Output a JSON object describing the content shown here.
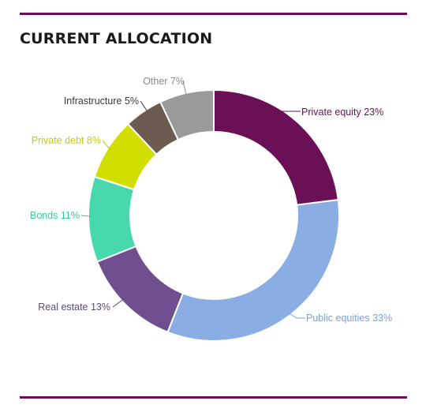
{
  "title": "CURRENT ALLOCATION",
  "chart_data": {
    "type": "pie",
    "style": "donut",
    "title": "CURRENT ALLOCATION",
    "slices": [
      {
        "label": "Private equity 23%",
        "name": "Private equity",
        "value": 23,
        "color": "#6b0f57"
      },
      {
        "label": "Public equities 33%",
        "name": "Public equities",
        "value": 33,
        "color": "#8aade3"
      },
      {
        "label": "Real estate 13%",
        "name": "Real estate",
        "value": 13,
        "color": "#6f4f8f"
      },
      {
        "label": "Bonds 11%",
        "name": "Bonds",
        "value": 11,
        "color": "#47d9ad"
      },
      {
        "label": "Private debt 8%",
        "name": "Private debt",
        "value": 8,
        "color": "#d2de00"
      },
      {
        "label": "Infrastructure 5%",
        "name": "Infrastructure",
        "value": 5,
        "color": "#6b5b50"
      },
      {
        "label": "Other 7%",
        "name": "Other",
        "value": 7,
        "color": "#9a9a9a"
      }
    ],
    "label_colors": {
      "Private equity": "#6b0f57",
      "Public equities": "#7c9fd4",
      "Real estate": "#5b4a78",
      "Bonds": "#36c99c",
      "Private debt": "#c3cf00",
      "Infrastructure": "#3a3a3a",
      "Other": "#8c8c8c"
    },
    "legend": "none"
  }
}
